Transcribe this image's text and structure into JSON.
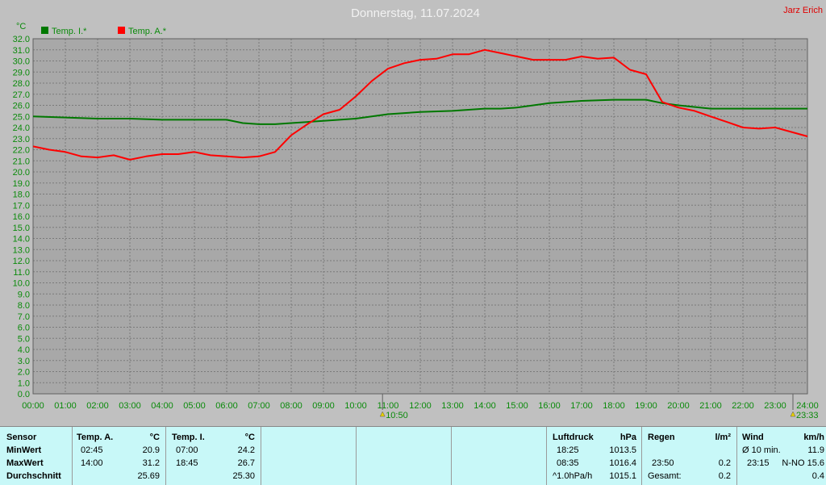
{
  "header": {
    "title": "Donnerstag, 11.07.2024",
    "author": "Jarz Erich"
  },
  "colors": {
    "indoor": "#007800",
    "outdoor": "#ff0000",
    "plot_bg": "#a8a8a8",
    "grid": "#7a7a7a",
    "tick_text": "#0a8a0a"
  },
  "chart_data": {
    "type": "line",
    "unit": "°C",
    "ylim": [
      0,
      32
    ],
    "yticks": [
      "0.0",
      "1.0",
      "2.0",
      "3.0",
      "4.0",
      "5.0",
      "6.0",
      "7.0",
      "8.0",
      "9.0",
      "10.0",
      "11.0",
      "12.0",
      "13.0",
      "14.0",
      "15.0",
      "16.0",
      "17.0",
      "18.0",
      "19.0",
      "20.0",
      "21.0",
      "22.0",
      "23.0",
      "24.0",
      "25.0",
      "26.0",
      "27.0",
      "28.0",
      "29.0",
      "30.0",
      "31.0",
      "32.0"
    ],
    "xticks": [
      "00:00",
      "01:00",
      "02:00",
      "03:00",
      "04:00",
      "05:00",
      "06:00",
      "07:00",
      "08:00",
      "09:00",
      "10:00",
      "11:00",
      "12:00",
      "13:00",
      "14:00",
      "15:00",
      "16:00",
      "17:00",
      "18:00",
      "19:00",
      "20:00",
      "21:00",
      "22:00",
      "23:00",
      "24:00"
    ],
    "markers": [
      {
        "label": "10:50",
        "icon": "sunrise-icon",
        "hour": 10.83
      },
      {
        "label": "23:33",
        "icon": "sunset-icon",
        "hour": 23.55
      }
    ],
    "grid": true,
    "legend_position": "top-left",
    "series": [
      {
        "name": "Temp. I.*",
        "color": "#007800",
        "x": [
          0,
          1,
          2,
          3,
          4,
          5,
          6,
          6.5,
          7,
          7.5,
          8,
          9,
          10,
          11,
          12,
          13,
          14,
          14.5,
          15,
          16,
          17,
          18,
          18.5,
          19,
          19.5,
          20,
          21,
          22,
          23,
          24
        ],
        "y": [
          25.0,
          24.9,
          24.8,
          24.8,
          24.7,
          24.7,
          24.7,
          24.4,
          24.3,
          24.3,
          24.4,
          24.6,
          24.8,
          25.2,
          25.4,
          25.5,
          25.7,
          25.7,
          25.8,
          26.2,
          26.4,
          26.5,
          26.5,
          26.5,
          26.2,
          26.0,
          25.7,
          25.7,
          25.7,
          25.7
        ]
      },
      {
        "name": "Temp. A.*",
        "color": "#ff0000",
        "x": [
          0,
          0.5,
          1,
          1.5,
          2,
          2.5,
          2.75,
          3,
          3.5,
          4,
          4.5,
          5,
          5.5,
          6,
          6.5,
          7,
          7.5,
          8,
          8.5,
          9,
          9.5,
          10,
          10.5,
          11,
          11.5,
          12,
          12.5,
          13,
          13.5,
          14,
          14.5,
          15,
          15.5,
          16,
          16.5,
          17,
          17.5,
          18,
          18.5,
          19,
          19.5,
          20,
          20.5,
          21,
          21.5,
          22,
          22.5,
          23,
          23.5,
          24
        ],
        "y": [
          22.3,
          22.0,
          21.8,
          21.4,
          21.3,
          21.5,
          21.3,
          21.1,
          21.4,
          21.6,
          21.6,
          21.8,
          21.5,
          21.4,
          21.3,
          21.4,
          21.8,
          23.3,
          24.3,
          25.2,
          25.6,
          26.8,
          28.2,
          29.3,
          29.8,
          30.1,
          30.2,
          30.6,
          30.6,
          31.0,
          30.7,
          30.4,
          30.1,
          30.1,
          30.1,
          30.4,
          30.2,
          30.3,
          29.2,
          28.8,
          26.3,
          25.8,
          25.5,
          25.0,
          24.5,
          24.0,
          23.9,
          24.0,
          23.6,
          23.2
        ]
      }
    ]
  },
  "table": {
    "temp": {
      "rows": [
        "Sensor",
        "MinWert",
        "MaxWert",
        "Durchschnitt"
      ],
      "outdoor": {
        "header": "Temp. A.",
        "unit": "°C",
        "min_time": "02:45",
        "min_val": "20.9",
        "max_time": "14:00",
        "max_val": "31.2",
        "avg": "25.69"
      },
      "indoor": {
        "header": "Temp. I.",
        "unit": "°C",
        "min_time": "07:00",
        "min_val": "24.2",
        "max_time": "18:45",
        "max_val": "26.7",
        "avg": "25.30"
      }
    },
    "pressure": {
      "header": "Luftdruck",
      "unit": "hPa",
      "t1": "18:25",
      "v1": "1013.5",
      "t2": "08:35",
      "v2": "1016.4",
      "t3": "^1.0hPa/h",
      "v3": "1015.1"
    },
    "rain": {
      "header": "Regen",
      "unit": "l/m²",
      "t2": "23:50",
      "v2": "0.2",
      "t3": "Gesamt:",
      "v3": "0.2"
    },
    "wind": {
      "header": "Wind",
      "unit": "km/h",
      "t1": "Ø 10 min.",
      "v1": "11.9",
      "t2": "23:15",
      "v2": "N-NO 15.6",
      "v3": "0.4"
    }
  }
}
